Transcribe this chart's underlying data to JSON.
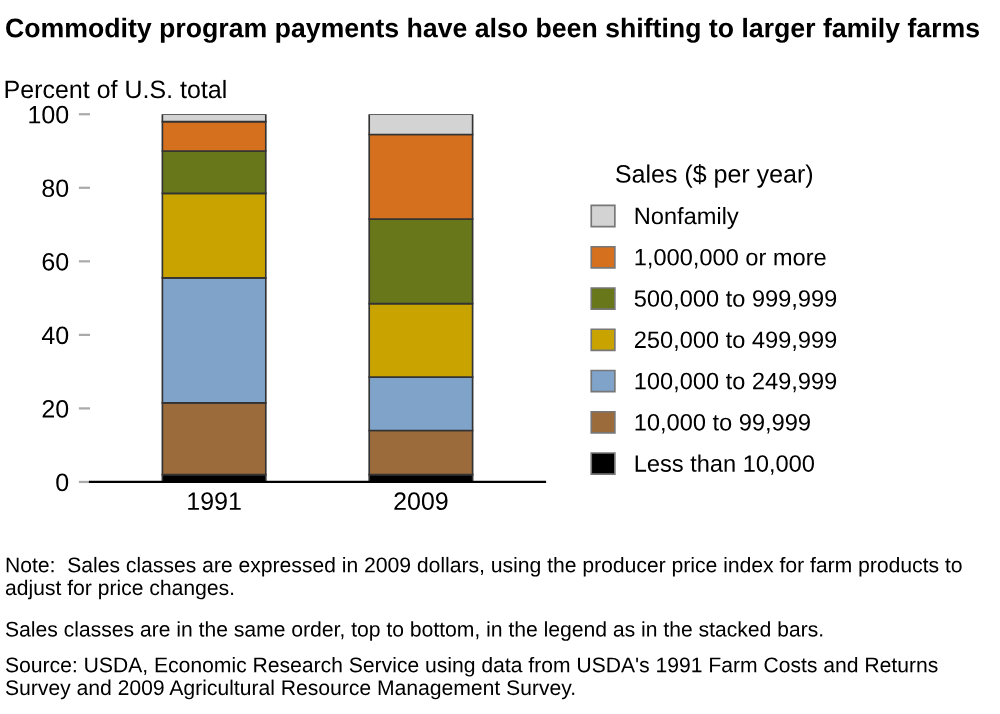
{
  "chart_data": {
    "type": "bar",
    "stacked": true,
    "title": "Commodity program payments have also been shifting to larger family farms",
    "ylabel": "Percent of U.S. total",
    "legend_title": "Sales ($ per year)",
    "categories": [
      "1991",
      "2009"
    ],
    "series": [
      {
        "name": "Less than 10,000",
        "color": "#000000",
        "values": [
          2,
          2
        ]
      },
      {
        "name": "10,000 to 99,999",
        "color": "#9c6b3c",
        "values": [
          19.5,
          12
        ]
      },
      {
        "name": "100,000 to 249,999",
        "color": "#7fa3c9",
        "values": [
          34,
          14.5
        ]
      },
      {
        "name": "250,000 to 499,999",
        "color": "#c9a400",
        "values": [
          23,
          20
        ]
      },
      {
        "name": "500,000 to 999,999",
        "color": "#677719",
        "values": [
          11.5,
          23
        ]
      },
      {
        "name": "1,000,000 or more",
        "color": "#d4701e",
        "values": [
          8,
          23
        ]
      },
      {
        "name": "Nonfamily",
        "color": "#d3d3d3",
        "values": [
          2,
          5.5
        ]
      }
    ],
    "ylim": [
      0,
      100
    ],
    "yticks": [
      0,
      20,
      40,
      60,
      80,
      100
    ],
    "grid": false,
    "legend": "right",
    "annotations": [
      "Note:  Sales classes are expressed in 2009 dollars, using the producer price index for farm products to adjust for price changes.",
      "Sales classes are in the same order, top to bottom, in the legend as in the stacked bars.",
      "Source: USDA, Economic Research Service using data from USDA's 1991 Farm Costs and Returns Survey and 2009 Agricultural Resource Management Survey."
    ]
  }
}
